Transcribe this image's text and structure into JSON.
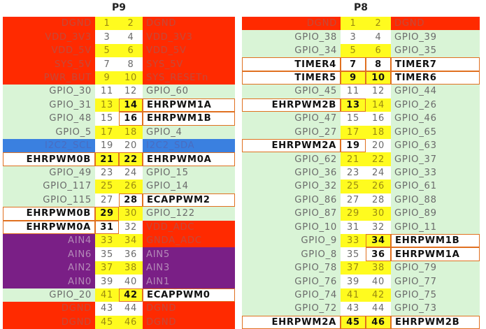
{
  "headers": {
    "p9": "P9",
    "p8": "P8"
  },
  "p9": [
    {
      "left": "DGND",
      "l": "1",
      "r": "2",
      "right": "DGND",
      "lt": "red",
      "ln": "yellow",
      "rn": "yellow",
      "rt": "red"
    },
    {
      "left": "VDD_3V3",
      "l": "3",
      "r": "4",
      "right": "VDD_3V3",
      "lt": "red",
      "ln": "white",
      "rn": "white",
      "rt": "red"
    },
    {
      "left": "VDD_5V",
      "l": "5",
      "r": "6",
      "right": "VDD_5V",
      "lt": "red",
      "ln": "yellow",
      "rn": "yellow",
      "rt": "red"
    },
    {
      "left": "SYS_5V",
      "l": "7",
      "r": "8",
      "right": "SYS_5V",
      "lt": "red",
      "ln": "white",
      "rn": "white",
      "rt": "red"
    },
    {
      "left": "PWR_BUT",
      "l": "9",
      "r": "10",
      "right": "SYS_RESETn",
      "lt": "red",
      "ln": "yellow",
      "rn": "yellow",
      "rt": "red"
    },
    {
      "left": "GPIO_30",
      "l": "11",
      "r": "12",
      "right": "GPIO_60",
      "lt": "gpio",
      "ln": "white",
      "rn": "white",
      "rt": "gpio"
    },
    {
      "left": "GPIO_31",
      "l": "13",
      "r": "14",
      "right": "EHRPWM1A",
      "lt": "gpio",
      "ln": "yellow",
      "rn": "hl",
      "rt": "white"
    },
    {
      "left": "GPIO_48",
      "l": "15",
      "r": "16",
      "right": "EHRPWM1B",
      "lt": "gpio",
      "ln": "white",
      "rn": "box",
      "rt": "white"
    },
    {
      "left": "GPIO_5",
      "l": "17",
      "r": "18",
      "right": "GPIO_4",
      "lt": "gpio",
      "ln": "yellow",
      "rn": "yellow",
      "rt": "gpio"
    },
    {
      "left": "I2C2_SCL",
      "l": "19",
      "r": "20",
      "right": "I2C2_SDA",
      "lt": "blue",
      "ln": "white",
      "rn": "white",
      "rt": "blue"
    },
    {
      "left": "EHRPWM0B",
      "l": "21",
      "r": "22",
      "right": "EHRPWM0A",
      "lt": "white",
      "ln": "hl",
      "rn": "hl",
      "rt": "white"
    },
    {
      "left": "GPIO_49",
      "l": "23",
      "r": "24",
      "right": "GPIO_15",
      "lt": "gpio",
      "ln": "white",
      "rn": "white",
      "rt": "gpio"
    },
    {
      "left": "GPIO_117",
      "l": "25",
      "r": "26",
      "right": "GPIO_14",
      "lt": "gpio",
      "ln": "yellow",
      "rn": "yellow",
      "rt": "gpio"
    },
    {
      "left": "GPIO_115",
      "l": "27",
      "r": "28",
      "right": "ECAPPWM2",
      "lt": "gpio",
      "ln": "white",
      "rn": "box",
      "rt": "white"
    },
    {
      "left": "EHRPWM0B",
      "l": "29",
      "r": "30",
      "right": "GPIO_122",
      "lt": "white",
      "ln": "hl",
      "rn": "yellow",
      "rt": "gpio"
    },
    {
      "left": "EHRPWM0A",
      "l": "31",
      "r": "32",
      "right": "VDD_ADC",
      "lt": "white",
      "ln": "box",
      "rn": "white",
      "rt": "red"
    },
    {
      "left": "AIN4",
      "l": "33",
      "r": "34",
      "right": "GNDA_ADC",
      "lt": "purple",
      "ln": "yellow",
      "rn": "yellow",
      "rt": "red"
    },
    {
      "left": "AIN6",
      "l": "35",
      "r": "36",
      "right": "AIN5",
      "lt": "purple",
      "ln": "white",
      "rn": "white",
      "rt": "purple"
    },
    {
      "left": "AIN2",
      "l": "37",
      "r": "38",
      "right": "AIN3",
      "lt": "purple",
      "ln": "yellow",
      "rn": "yellow",
      "rt": "purple"
    },
    {
      "left": "AIN0",
      "l": "39",
      "r": "40",
      "right": "AIN1",
      "lt": "purple",
      "ln": "white",
      "rn": "white",
      "rt": "purple"
    },
    {
      "left": "GPIO_20",
      "l": "41",
      "r": "42",
      "right": "ECAPPWM0",
      "lt": "gpio",
      "ln": "yellow",
      "rn": "hl",
      "rt": "white"
    },
    {
      "left": "DGND",
      "l": "43",
      "r": "44",
      "right": "DGND",
      "lt": "red",
      "ln": "white",
      "rn": "white",
      "rt": "red"
    },
    {
      "left": "DGND",
      "l": "45",
      "r": "46",
      "right": "DGND",
      "lt": "red",
      "ln": "yellow",
      "rn": "yellow",
      "rt": "red"
    }
  ],
  "p8": [
    {
      "left": "DGND",
      "l": "1",
      "r": "2",
      "right": "DGND",
      "lt": "red",
      "ln": "yellow",
      "rn": "yellow",
      "rt": "red"
    },
    {
      "left": "GPIO_38",
      "l": "3",
      "r": "4",
      "right": "GPIO_39",
      "lt": "gpio",
      "ln": "white",
      "rn": "white",
      "rt": "gpio"
    },
    {
      "left": "GPIO_34",
      "l": "5",
      "r": "6",
      "right": "GPIO_35",
      "lt": "gpio",
      "ln": "yellow",
      "rn": "yellow",
      "rt": "gpio"
    },
    {
      "left": "TIMER4",
      "l": "7",
      "r": "8",
      "right": "TIMER7",
      "lt": "white",
      "ln": "box",
      "rn": "box",
      "rt": "white"
    },
    {
      "left": "TIMER5",
      "l": "9",
      "r": "10",
      "right": "TIMER6",
      "lt": "white",
      "ln": "hl",
      "rn": "hl",
      "rt": "white"
    },
    {
      "left": "GPIO_45",
      "l": "11",
      "r": "12",
      "right": "GPIO_44",
      "lt": "gpio",
      "ln": "white",
      "rn": "white",
      "rt": "gpio"
    },
    {
      "left": "EHRPWM2B",
      "l": "13",
      "r": "14",
      "right": "GPIO_26",
      "lt": "white",
      "ln": "hl",
      "rn": "yellow",
      "rt": "gpio"
    },
    {
      "left": "GPIO_47",
      "l": "15",
      "r": "16",
      "right": "GPIO_46",
      "lt": "gpio",
      "ln": "white",
      "rn": "white",
      "rt": "gpio"
    },
    {
      "left": "GPIO_27",
      "l": "17",
      "r": "18",
      "right": "GPIO_65",
      "lt": "gpio",
      "ln": "yellow",
      "rn": "yellow",
      "rt": "gpio"
    },
    {
      "left": "EHRPWM2A",
      "l": "19",
      "r": "20",
      "right": "GPIO_63",
      "lt": "white",
      "ln": "box",
      "rn": "white",
      "rt": "gpio"
    },
    {
      "left": "GPIO_62",
      "l": "21",
      "r": "22",
      "right": "GPIO_37",
      "lt": "gpio",
      "ln": "yellow",
      "rn": "yellow",
      "rt": "gpio"
    },
    {
      "left": "GPIO_36",
      "l": "23",
      "r": "24",
      "right": "GPIO_33",
      "lt": "gpio",
      "ln": "white",
      "rn": "white",
      "rt": "gpio"
    },
    {
      "left": "GPIO_32",
      "l": "25",
      "r": "26",
      "right": "GPIO_61",
      "lt": "gpio",
      "ln": "yellow",
      "rn": "yellow",
      "rt": "gpio"
    },
    {
      "left": "GPIO_86",
      "l": "27",
      "r": "28",
      "right": "GPIO_88",
      "lt": "gpio",
      "ln": "white",
      "rn": "white",
      "rt": "gpio"
    },
    {
      "left": "GPIO_87",
      "l": "29",
      "r": "30",
      "right": "GPIO_89",
      "lt": "gpio",
      "ln": "yellow",
      "rn": "yellow",
      "rt": "gpio"
    },
    {
      "left": "GPIO_10",
      "l": "31",
      "r": "32",
      "right": "GPIO_11",
      "lt": "gpio",
      "ln": "white",
      "rn": "white",
      "rt": "gpio"
    },
    {
      "left": "GPIO_9",
      "l": "33",
      "r": "34",
      "right": "EHRPWM1B",
      "lt": "gpio",
      "ln": "yellow",
      "rn": "hl",
      "rt": "white"
    },
    {
      "left": "GPIO_8",
      "l": "35",
      "r": "36",
      "right": "EHRPWM1A",
      "lt": "gpio",
      "ln": "white",
      "rn": "box",
      "rt": "white"
    },
    {
      "left": "GPIO_78",
      "l": "37",
      "r": "38",
      "right": "GPIO_79",
      "lt": "gpio",
      "ln": "yellow",
      "rn": "yellow",
      "rt": "gpio"
    },
    {
      "left": "GPIO_76",
      "l": "39",
      "r": "40",
      "right": "GPIO_77",
      "lt": "gpio",
      "ln": "white",
      "rn": "white",
      "rt": "gpio"
    },
    {
      "left": "GPIO_74",
      "l": "41",
      "r": "42",
      "right": "GPIO_75",
      "lt": "gpio",
      "ln": "yellow",
      "rn": "yellow",
      "rt": "gpio"
    },
    {
      "left": "GPIO_72",
      "l": "43",
      "r": "44",
      "right": "GPIO_73",
      "lt": "gpio",
      "ln": "white",
      "rn": "white",
      "rt": "gpio"
    },
    {
      "left": "EHRPWM2A",
      "l": "45",
      "r": "46",
      "right": "EHRPWM2B",
      "lt": "white",
      "ln": "hl",
      "rn": "hl",
      "rt": "white"
    }
  ]
}
